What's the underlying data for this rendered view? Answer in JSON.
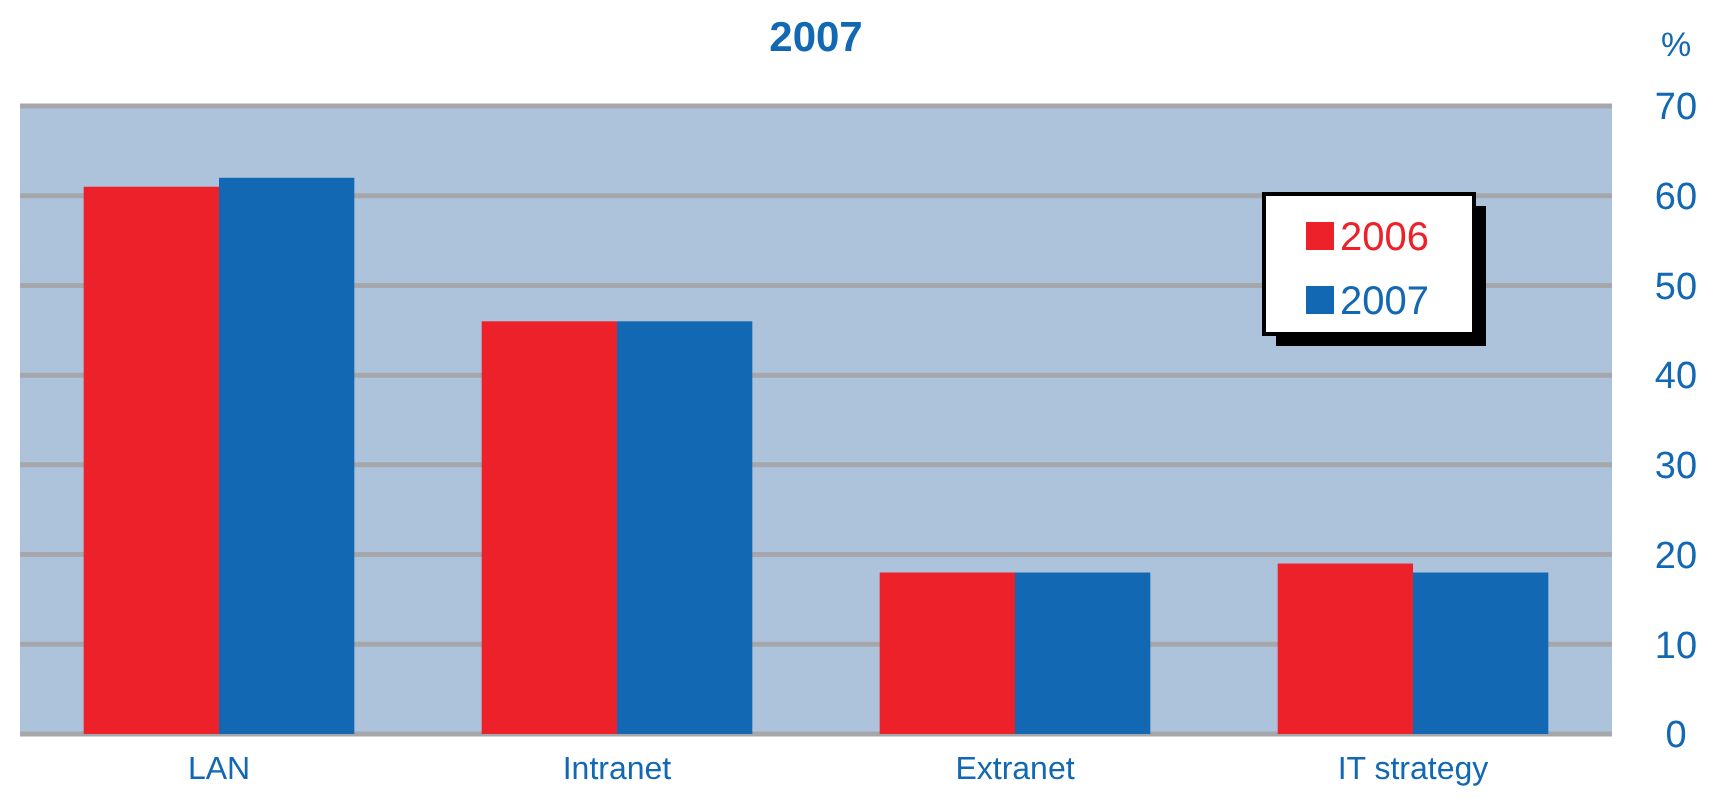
{
  "chart_data": {
    "type": "bar",
    "title": "2007",
    "ylabel": "%",
    "categories": [
      "LAN",
      "Intranet",
      "Extranet",
      "IT strategy"
    ],
    "series": [
      {
        "name": "2006",
        "color": "#ed2129",
        "values": [
          61,
          46,
          18,
          19
        ]
      },
      {
        "name": "2007",
        "color": "#1268b3",
        "values": [
          62,
          46,
          18,
          18
        ]
      }
    ],
    "ylim": [
      0,
      70
    ],
    "yticks": [
      0,
      10,
      20,
      30,
      40,
      50,
      60,
      70
    ],
    "grid": "y",
    "legend": "top right"
  }
}
